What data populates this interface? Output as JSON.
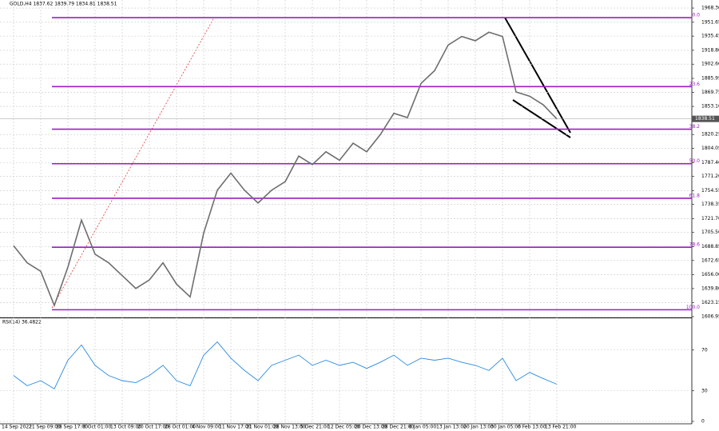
{
  "chart_data": [
    {
      "type": "line",
      "title": "GOLD,H4 1837.62 1839.79 1834.81 1838.51",
      "categories": [
        "14 Sep 2022",
        null,
        "21 Sep 09:00",
        null,
        "28 Sep 17:00",
        null,
        "6 Oct 01:00",
        null,
        "13 Oct 09:00",
        null,
        "20 Oct 17:00",
        null,
        "28 Oct 01:00",
        null,
        "4 Nov 09:00",
        null,
        "11 Nov 17:00",
        null,
        "21 Nov 01:00",
        null,
        "28 Nov 13:00",
        null,
        "5 Dec 21:00",
        null,
        "12 Dec 05:00",
        null,
        "20 Dec 13:00",
        null,
        "28 Dec 21:00",
        null,
        "6 Jan 05:00",
        null,
        "13 Jan 13:00",
        null,
        "20 Jan 13:00",
        null,
        "30 Jan 05:00",
        null,
        "6 Feb 13:00",
        null,
        "13 Feb 21:00",
        null,
        null,
        null,
        null,
        null,
        null,
        null,
        null,
        null,
        null
      ],
      "series": [
        {
          "name": "GOLD,H4",
          "color": "#6e6e6e",
          "values": [
            1690,
            1670,
            1660,
            1620,
            1665,
            1720,
            1680,
            1670,
            1655,
            1640,
            1650,
            1670,
            1645,
            1630,
            1705,
            1755,
            1775,
            1755,
            1740,
            1755,
            1765,
            1795,
            1785,
            1800,
            1790,
            1810,
            1800,
            1820,
            1845,
            1840,
            1880,
            1895,
            1925,
            1935,
            1930,
            1940,
            1935,
            1870,
            1865,
            1855,
            1838.51,
            null,
            null,
            null,
            null,
            null,
            null,
            null,
            null,
            null,
            null
          ]
        }
      ],
      "ylim": [
        1606,
        1977.7
      ],
      "yticks": [
        {
          "value": 1968.3,
          "label": "1968.30"
        },
        1951.65,
        1935.45,
        {
          "value": 1918.8,
          "label": "1918.80"
        },
        {
          "value": 1902.6,
          "label": "1902.60"
        },
        1885.95,
        1869.75,
        {
          "value": 1853.1,
          "label": "1853.10"
        },
        1820.25,
        1804.05,
        {
          "value": 1787.4,
          "label": "1787.40"
        },
        {
          "value": 1771.2,
          "label": "1771.20"
        },
        1754.55,
        1738.35,
        {
          "value": 1721.7,
          "label": "1721.70"
        },
        {
          "value": 1705.5,
          "label": "1705.50"
        },
        1688.85,
        1672.65,
        {
          "value": 1656.0,
          "label": "1656.00"
        },
        {
          "value": 1639.8,
          "label": "1639.80"
        },
        1623.15,
        1606.95
      ],
      "grid": true,
      "fib_color": "#9a1fc4",
      "fib_levels": [
        {
          "label": "0.0",
          "value": 1957
        },
        {
          "label": "23.6",
          "value": 1876.3
        },
        {
          "label": "38.2",
          "value": 1826.4
        },
        {
          "label": "50.0",
          "value": 1786
        },
        {
          "label": "61.8",
          "value": 1745.6
        },
        {
          "label": "78.6",
          "value": 1688.2
        },
        {
          "label": "100.0",
          "value": 1615
        }
      ]
    },
    {
      "type": "line",
      "title": "RSI(14) 36.4822",
      "series": [
        {
          "name": "RSI(14)",
          "color": "#2a8be0",
          "values": [
            45,
            35,
            40,
            32,
            60,
            75,
            55,
            45,
            40,
            38,
            45,
            55,
            40,
            35,
            65,
            78,
            62,
            50,
            40,
            55,
            60,
            65,
            55,
            60,
            55,
            58,
            52,
            58,
            65,
            55,
            62,
            60,
            62,
            58,
            55,
            50,
            62,
            40,
            48,
            42,
            36.4822,
            null,
            null,
            null,
            null,
            null,
            null,
            null,
            null,
            null,
            null
          ]
        }
      ],
      "ylim": [
        0,
        100
      ],
      "yticks": [
        70,
        30,
        0
      ],
      "grid": true
    }
  ]
}
